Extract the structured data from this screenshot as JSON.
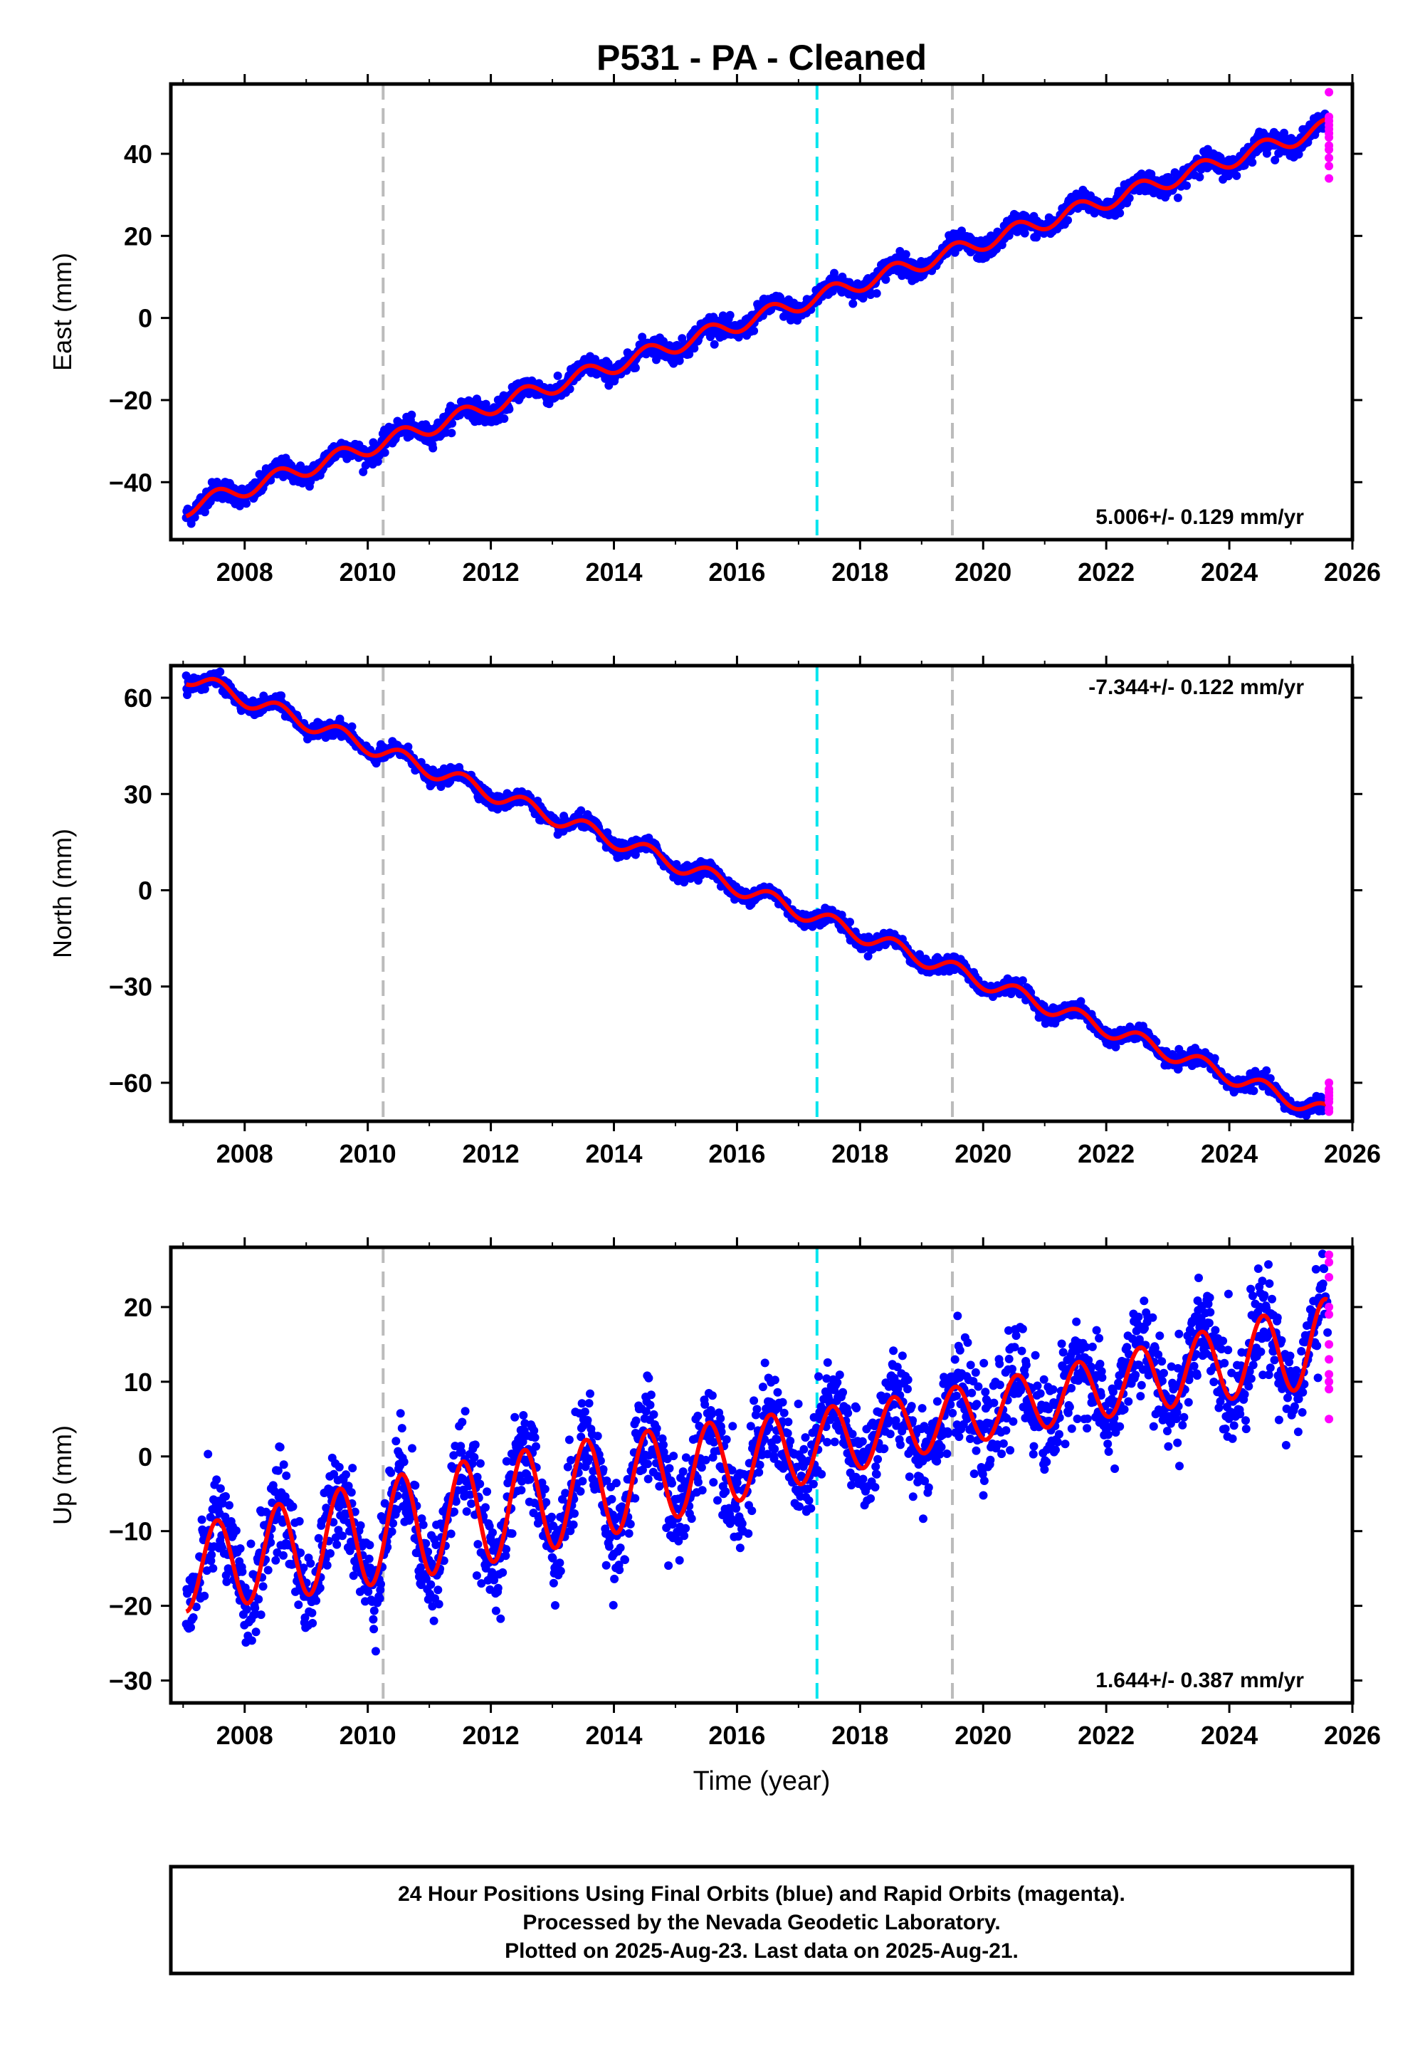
{
  "title": "P531  - PA - Cleaned",
  "colors": {
    "final_orbits": "#0000ff",
    "rapid_orbits": "#ff00ff",
    "model_fit": "#ff0000",
    "event_line": "#bbbbbb",
    "equipment_line": "#00e5ee"
  },
  "footer": {
    "line1": "24 Hour Positions Using Final Orbits (blue) and Rapid Orbits (magenta).",
    "line2": "Processed by the Nevada Geodetic Laboratory.",
    "line3": "Plotted on 2025-Aug-23. Last data on 2025-Aug-21."
  },
  "chart_data": [
    {
      "type": "scatter",
      "component": "East",
      "ylabel": "East (mm)",
      "xlabel": "",
      "xlim": [
        2006.8,
        2026.0
      ],
      "ylim": [
        -54,
        57
      ],
      "xticks": [
        "2008",
        "2010",
        "2012",
        "2014",
        "2016",
        "2018",
        "2020",
        "2022",
        "2024",
        "2026"
      ],
      "yticks": [
        "40",
        "20",
        "0",
        "−20",
        "−40"
      ],
      "ytick_values": [
        40,
        20,
        0,
        -20,
        -40
      ],
      "rate_label": "5.006+/- 0.129 mm/yr",
      "rate_position": "bottom-right",
      "data_start": 2007.05,
      "data_end": 2025.6,
      "trend": {
        "slope": 5.006,
        "value_at_2016": -1.5
      },
      "seasonal_amplitude": 2.0,
      "scatter": 1.2,
      "rapid_orbit_points": [
        44,
        47,
        49,
        55,
        34,
        42,
        39,
        46,
        41,
        37,
        48,
        45
      ],
      "event_lines": [
        2010.25,
        2019.5
      ],
      "equipment_lines": [
        2017.3
      ]
    },
    {
      "type": "scatter",
      "component": "North",
      "ylabel": "North (mm)",
      "xlabel": "",
      "xlim": [
        2006.8,
        2026.0
      ],
      "ylim": [
        -72,
        70
      ],
      "xticks": [
        "2008",
        "2010",
        "2012",
        "2014",
        "2016",
        "2018",
        "2020",
        "2022",
        "2024",
        "2026"
      ],
      "yticks": [
        "60",
        "30",
        "0",
        "−30",
        "−60"
      ],
      "ytick_values": [
        60,
        30,
        0,
        -30,
        -60
      ],
      "rate_label": "-7.344+/- 0.122 mm/yr",
      "rate_position": "top-right",
      "data_start": 2007.05,
      "data_end": 2025.6,
      "trend": {
        "slope": -7.344,
        "value_at_2016": 1.0
      },
      "seasonal_amplitude": 2.5,
      "scatter": 1.1,
      "rapid_orbit_points": [
        -62,
        -65,
        -68,
        -60,
        -66,
        -64,
        -69,
        -63
      ],
      "event_lines": [
        2010.25,
        2019.5
      ],
      "equipment_lines": [
        2017.3
      ]
    },
    {
      "type": "scatter",
      "component": "Up",
      "ylabel": "Up (mm)",
      "xlabel": "Time (year)",
      "xlim": [
        2006.8,
        2026.0
      ],
      "ylim": [
        -33,
        28
      ],
      "xticks": [
        "2008",
        "2010",
        "2012",
        "2014",
        "2016",
        "2018",
        "2020",
        "2022",
        "2024",
        "2026"
      ],
      "yticks": [
        "20",
        "10",
        "0",
        "−10",
        "−20",
        "−30"
      ],
      "ytick_values": [
        20,
        10,
        0,
        -10,
        -20,
        -30
      ],
      "rate_label": "1.644+/- 0.387 mm/yr",
      "rate_position": "bottom-right",
      "data_start": 2007.05,
      "data_end": 2025.6,
      "trend": {
        "slope": 1.644,
        "value_at_2016": -0.5
      },
      "seasonal_amplitude": 6.5,
      "scatter": 3.2,
      "rapid_orbit_points": [
        27,
        26,
        24,
        20,
        19,
        15,
        13,
        11,
        10,
        9,
        5
      ],
      "event_lines": [
        2010.25,
        2019.5
      ],
      "equipment_lines": [
        2017.3
      ]
    }
  ]
}
